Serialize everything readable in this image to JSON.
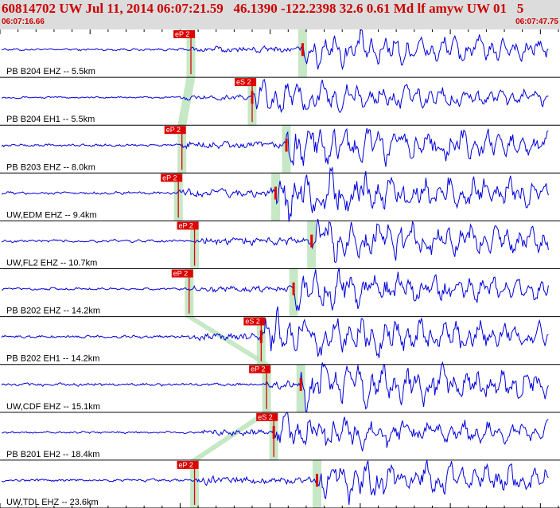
{
  "header": {
    "title": "60814702 UW Jul 11, 2014 06:07:21.59   46.1390 -122.2398 32.6 0.61 Md lf amyw UW 01   5",
    "start_time": "06:07:16.66",
    "end_time": "06:07:47.75"
  },
  "colors": {
    "trace": "#0000dd",
    "pick": "#dd0000",
    "moveout_band": "#b8e2b8",
    "header_background": "#dcdcdc"
  },
  "chart_data": {
    "type": "line",
    "time_range": [
      "06:07:16.66",
      "06:07:47.75"
    ],
    "event": {
      "id": "60814702",
      "network": "UW",
      "date": "Jul 11, 2014",
      "origin_time": "06:07:21.59",
      "latitude": 46.139,
      "longitude": -122.2398,
      "depth_km": 32.6,
      "magnitude": 0.61,
      "magnitude_type": "Md"
    },
    "traces": [
      {
        "label": "PB B204 EHZ -- 5.5km",
        "distance_km": 5.5,
        "amplitude": 0.45,
        "pick": {
          "label": "eP 2",
          "time_s": 10.6
        },
        "s_arrival_s": 16.8
      },
      {
        "label": "PB B204 EH1 -- 5.5km",
        "distance_km": 5.5,
        "amplitude": 0.38,
        "pick": {
          "label": "eS 2",
          "time_s": 14.0
        },
        "s_arrival_s": 14.0
      },
      {
        "label": "PB B203 EHZ -- 8.0km",
        "distance_km": 8.0,
        "amplitude": 0.55,
        "pick": {
          "label": "eP 2",
          "time_s": 10.1
        },
        "s_arrival_s": 15.9
      },
      {
        "label": "UW,EDM EHZ -- 9.4km",
        "distance_km": 9.4,
        "amplitude": 0.62,
        "pick": {
          "label": "eP 2",
          "time_s": 9.9
        },
        "s_arrival_s": 15.3
      },
      {
        "label": "UW,FL2 EHZ -- 10.7km",
        "distance_km": 10.7,
        "amplitude": 0.55,
        "pick": {
          "label": "eP 2",
          "time_s": 10.8
        },
        "s_arrival_s": 17.3
      },
      {
        "label": "PB B202 EHZ -- 14.2km",
        "distance_km": 14.2,
        "amplitude": 0.5,
        "pick": {
          "label": "eP 2",
          "time_s": 10.5
        },
        "s_arrival_s": 16.3
      },
      {
        "label": "PB B202 EH1 -- 14.2km",
        "distance_km": 14.2,
        "amplitude": 0.58,
        "pick": {
          "label": "eS 2",
          "time_s": 14.5
        },
        "s_arrival_s": 14.5
      },
      {
        "label": "UW,CDF EHZ -- 15.1km",
        "distance_km": 15.1,
        "amplitude": 0.6,
        "pick": {
          "label": "eP 2",
          "time_s": 14.8
        },
        "s_arrival_s": 16.7
      },
      {
        "label": "PB B201 EH2 -- 18.4km",
        "distance_km": 18.4,
        "amplitude": 0.45,
        "pick": {
          "label": "eS 2",
          "time_s": 15.2
        },
        "s_arrival_s": 15.2
      },
      {
        "label": "UW,TDL EHZ -- 23.6km",
        "distance_km": 23.6,
        "amplitude": 0.55,
        "pick": {
          "label": "eP 2",
          "time_s": 10.8
        },
        "s_arrival_s": 17.6
      }
    ]
  }
}
